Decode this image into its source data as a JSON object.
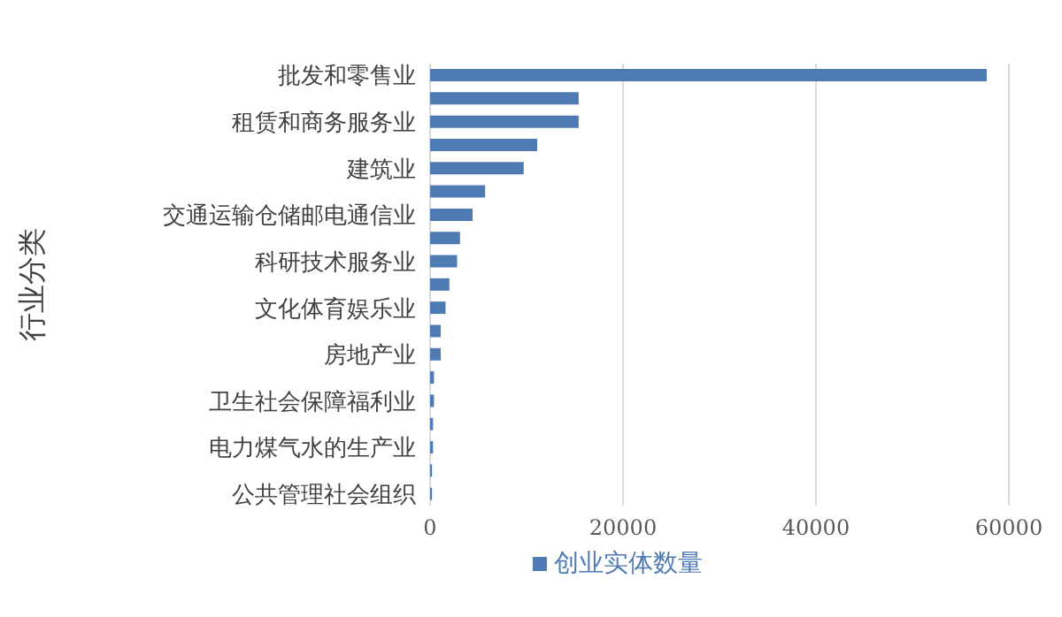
{
  "chart_data": {
    "type": "bar",
    "orientation": "horizontal",
    "ylabel": "行业分类",
    "categories": [
      "批发和零售业",
      null,
      "租赁和商务服务业",
      null,
      "建筑业",
      null,
      "交通运输仓储邮电通信业",
      null,
      "科研技术服务业",
      null,
      "文化体育娱乐业",
      null,
      "房地产业",
      null,
      "卫生社会保障福利业",
      null,
      "电力煤气水的生产业",
      null,
      "公共管理社会组织"
    ],
    "series": [
      {
        "name": "创业实体数量",
        "color": "#4f7bb5",
        "values": [
          57700,
          15400,
          15400,
          11100,
          9700,
          5700,
          4400,
          3100,
          2800,
          2000,
          1600,
          1100,
          1100,
          400,
          400,
          300,
          300,
          200,
          200
        ]
      }
    ],
    "xlim": [
      0,
      60000
    ],
    "xticks": [
      0,
      20000,
      40000,
      60000
    ],
    "grid": "x",
    "legend": "bottom"
  }
}
